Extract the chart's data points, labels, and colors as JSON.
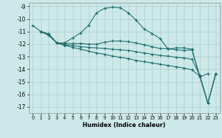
{
  "xlabel": "Humidex (Indice chaleur)",
  "background_color": "#cce8e8",
  "grid_color": "#aacccc",
  "line_color": "#1a6b6b",
  "xlim": [
    -0.5,
    23.5
  ],
  "ylim": [
    -17.5,
    -8.7
  ],
  "yticks": [
    -9,
    -10,
    -11,
    -12,
    -13,
    -14,
    -15,
    -16,
    -17
  ],
  "xticks": [
    0,
    1,
    2,
    3,
    4,
    5,
    6,
    7,
    8,
    9,
    10,
    11,
    12,
    13,
    14,
    15,
    16,
    17,
    18,
    19,
    20,
    21,
    22,
    23
  ],
  "lines": [
    {
      "x": [
        0,
        1,
        2,
        3,
        4,
        5,
        6,
        7,
        8,
        9,
        10,
        11,
        12,
        13,
        14,
        15,
        16,
        17,
        18,
        19,
        20,
        21,
        22
      ],
      "y": [
        -10.5,
        -11.0,
        -11.2,
        -11.9,
        -11.9,
        -11.5,
        -11.1,
        -10.5,
        -9.5,
        -9.15,
        -9.05,
        -9.1,
        -9.5,
        -10.1,
        -10.8,
        -11.15,
        -11.55,
        -12.4,
        -12.3,
        -12.3,
        -12.4,
        -14.6,
        -14.35
      ]
    },
    {
      "x": [
        1,
        2,
        3,
        4,
        5,
        6,
        7,
        8,
        9,
        10,
        11,
        12,
        13,
        14,
        15,
        16,
        17,
        18,
        19,
        20,
        21,
        22,
        23
      ],
      "y": [
        -11.0,
        -11.2,
        -11.9,
        -11.95,
        -11.95,
        -11.95,
        -12.0,
        -12.0,
        -11.85,
        -11.75,
        -11.75,
        -11.8,
        -11.9,
        -12.05,
        -12.2,
        -12.35,
        -12.35,
        -12.45,
        -12.5,
        -12.45,
        -14.6,
        -16.7,
        -14.35
      ]
    },
    {
      "x": [
        1,
        2,
        3,
        4,
        5,
        6,
        7,
        8,
        9,
        10,
        11,
        12,
        13,
        14,
        15,
        16,
        17,
        18,
        19,
        20,
        21,
        22,
        23
      ],
      "y": [
        -11.0,
        -11.2,
        -11.9,
        -12.05,
        -12.1,
        -12.2,
        -12.25,
        -12.3,
        -12.35,
        -12.4,
        -12.45,
        -12.5,
        -12.6,
        -12.7,
        -12.8,
        -12.9,
        -12.95,
        -13.05,
        -13.1,
        -13.2,
        -14.5,
        -16.7,
        -14.35
      ]
    },
    {
      "x": [
        1,
        2,
        3,
        4,
        5,
        6,
        7,
        8,
        9,
        10,
        11,
        12,
        13,
        14,
        15,
        16,
        17,
        18,
        19,
        20,
        21,
        22,
        23
      ],
      "y": [
        -11.0,
        -11.3,
        -11.9,
        -12.1,
        -12.25,
        -12.4,
        -12.55,
        -12.7,
        -12.8,
        -12.95,
        -13.05,
        -13.15,
        -13.3,
        -13.4,
        -13.5,
        -13.6,
        -13.7,
        -13.8,
        -13.9,
        -14.05,
        -14.55,
        -16.7,
        -14.35
      ]
    }
  ]
}
